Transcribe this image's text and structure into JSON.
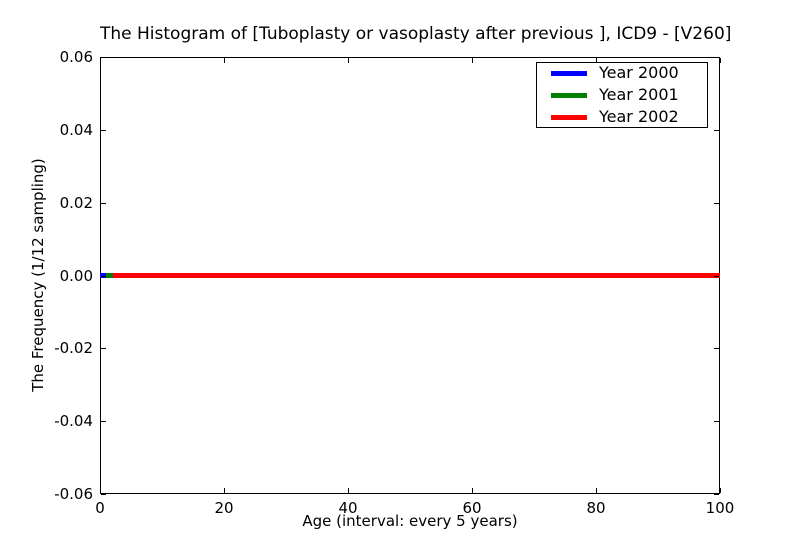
{
  "chart_data": {
    "type": "line",
    "title": "The Histogram of [Tuboplasty or vasoplasty after previous ], ICD9 - [V260]",
    "xlabel": "Age (interval: every 5 years)",
    "ylabel": "The Frequency (1/12 sampling)",
    "xlim": [
      0,
      100
    ],
    "ylim": [
      -0.06,
      0.06
    ],
    "xticks": [
      0,
      20,
      40,
      60,
      80,
      100
    ],
    "xtick_labels": [
      "0",
      "20",
      "40",
      "60",
      "80",
      "100"
    ],
    "yticks": [
      0.06,
      0.04,
      0.02,
      0.0,
      -0.02,
      -0.04,
      -0.06
    ],
    "ytick_labels": [
      "0.06",
      "0.04",
      "0.02",
      "0.00",
      "-0.02",
      "-0.04",
      "-0.06"
    ],
    "grid": false,
    "legend_position": "upper right",
    "tick_style": "inward-all-sides",
    "background_color": "#ffffff",
    "text_color": "#000000",
    "series": [
      {
        "name": "Year 2000",
        "color": "#0000ff",
        "x": [
          0,
          100
        ],
        "values": [
          0,
          0
        ]
      },
      {
        "name": "Year 2001",
        "color": "#008000",
        "x": [
          0,
          100
        ],
        "values": [
          0,
          0
        ]
      },
      {
        "name": "Year 2002",
        "color": "#ff0000",
        "x": [
          0,
          100
        ],
        "values": [
          0,
          0
        ]
      }
    ]
  }
}
